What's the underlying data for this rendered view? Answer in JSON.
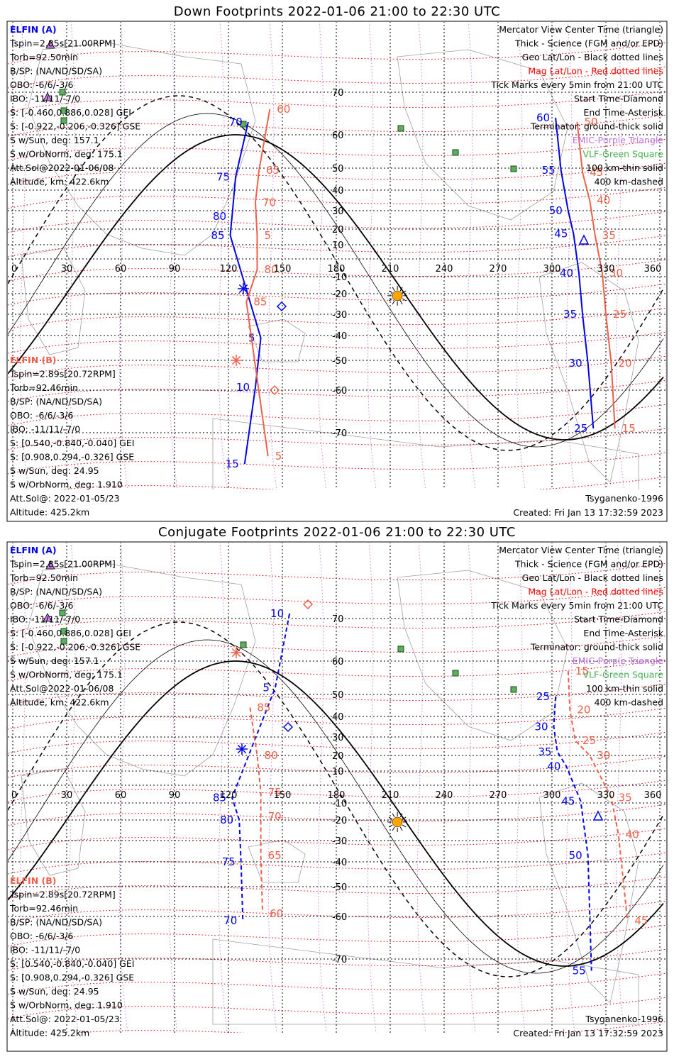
{
  "panels": [
    {
      "title": "Down Footprints 2022-01-06 21:00 to 22:30 UTC",
      "legend_left_a": {
        "name": "ELFIN (A)",
        "lines": [
          "Tspin=2.85s[21.00RPM]",
          "Torb=92.50min",
          "B/SP: (NA/ND/SD/SA)",
          "OBO: -6/6/-3/6",
          "IBO: -11/11/-7/0",
          "S: [-0.460,0.886,0.028] GEI",
          "S: [-0.922,-0.206,-0.326] GSE",
          "S w/Sun, deg: 157.1",
          "S w/OrbNorm, deg: 175.1",
          "Att.Sol@2022-01-06/08",
          "Altitude, km: 422.6km"
        ]
      },
      "legend_left_b": {
        "name": "ELFIN (B)",
        "lines": [
          "Tspin=2.89s[20.72RPM]",
          "Torb=92.46min",
          "B/SP: (NA/ND/SD/SA)",
          "OBO: -6/6/-3/6",
          "IBO: -11/11/-7/0",
          "S: [0.540,-0.840,-0.040] GEI",
          "S: [0.908,0.294,-0.326] GSE",
          "S w/Sun, deg: 24.95",
          "S w/OrbNorm, deg: 1.910",
          "Att.Sol@: 2022-01-05/23",
          "Altitude: 425.2km"
        ]
      },
      "legend_right": [
        {
          "text": "Mercator View Center Time (triangle)",
          "color": "#000000"
        },
        {
          "text": "Thick - Science (FGM and/or EPD)",
          "color": "#000000"
        },
        {
          "text": "Geo Lat/Lon - Black dotted lines",
          "color": "#000000"
        },
        {
          "text": "Mag Lat/Lon - Red dotted lines",
          "color": "#ff0000"
        },
        {
          "text": "Tick Marks every 5min from 21:00 UTC",
          "color": "#000000"
        },
        {
          "text": "Start Time-Diamond",
          "color": "#000000"
        },
        {
          "text": "End Time-Asterisk",
          "color": "#000000"
        },
        {
          "text": "Terminator: ground-thick solid",
          "color": "#000000"
        },
        {
          "text": "EMIC-Purple Triangle",
          "color": "#c070e0"
        },
        {
          "text": "VLF-Green Square",
          "color": "#40b050"
        },
        {
          "text": "100 km-thin solid",
          "color": "#000000"
        },
        {
          "text": "400 km-dashed",
          "color": "#000000"
        }
      ],
      "model": "Tsyganenko-1996",
      "created": "Created: Fri Jan 13 17:32:59 2023"
    },
    {
      "title": "Conjugate Footprints 2022-01-06 21:00 to 22:30 UTC",
      "legend_left_a": {
        "name": "ELFIN (A)",
        "lines": [
          "Tspin=2.85s[21.00RPM]",
          "Torb=92.50min",
          "B/SP: (NA/ND/SD/SA)",
          "OBO: -6/6/-3/6",
          "IBO: -11/11/-7/0",
          "S: [-0.460,0.886,0.028] GEI",
          "S: [-0.922,-0.206,-0.326] GSE",
          "S w/Sun, deg: 157.1",
          "S w/OrbNorm, deg: 175.1",
          "Att.Sol@2022-01-06/08",
          "Altitude, km: 422.6km"
        ]
      },
      "legend_left_b": {
        "name": "ELFIN (B)",
        "lines": [
          "Tspin=2.89s[20.72RPM]",
          "Torb=92.46min",
          "B/SP: (NA/ND/SD/SA)",
          "OBO: -6/6/-3/6",
          "IBO: -11/11/-7/0",
          "S: [0.540,-0.840,-0.040] GEI",
          "S: [0.908,0.294,-0.326] GSE",
          "S w/Sun, deg: 24.95",
          "S w/OrbNorm, deg: 1.910",
          "Att.Sol@: 2022-01-05/23",
          "Altitude: 425.2km"
        ]
      },
      "legend_right": [
        {
          "text": "Mercator View Center Time (triangle)",
          "color": "#000000"
        },
        {
          "text": "Thick - Science (FGM and/or EPD)",
          "color": "#000000"
        },
        {
          "text": "Geo Lat/Lon - Black dotted lines",
          "color": "#000000"
        },
        {
          "text": "Mag Lat/Lon - Red dotted lines",
          "color": "#ff0000"
        },
        {
          "text": "Tick Marks every 5min from 21:00 UTC",
          "color": "#000000"
        },
        {
          "text": "Start Time-Diamond",
          "color": "#000000"
        },
        {
          "text": "End Time-Asterisk",
          "color": "#000000"
        },
        {
          "text": "Terminator: ground-thick solid",
          "color": "#000000"
        },
        {
          "text": "EMIC-Purple Triangle",
          "color": "#c070e0"
        },
        {
          "text": "VLF-Green Square",
          "color": "#40b050"
        },
        {
          "text": "100 km-thin solid",
          "color": "#000000"
        },
        {
          "text": "400 km-dashed",
          "color": "#000000"
        }
      ],
      "model": "Tsyganenko-1996",
      "created": "Created: Fri Jan 13 17:32:59 2023"
    }
  ],
  "map": {
    "lon_ticks": [
      "0",
      "30",
      "60",
      "90",
      "120",
      "150",
      "180",
      "210",
      "240",
      "270",
      "300",
      "330",
      "360"
    ],
    "lat_ticks": [
      "70",
      "60",
      "50",
      "40",
      "30",
      "20",
      "10",
      "-10",
      "-20",
      "-30",
      "-40",
      "-50",
      "-60",
      "-70"
    ],
    "colors": {
      "elfin_a": "#0000ee",
      "elfin_b": "#f06048",
      "terminator": "#000000",
      "mag_grid": "#dd0000",
      "geo_grid": "#000000",
      "vlf": "#40a050",
      "emic": "#c070e0",
      "sun": "#ffa500"
    }
  },
  "tracks": {
    "down": {
      "a_west": [
        {
          "label": "70",
          "lon": 131,
          "lat": 63
        },
        {
          "label": "75",
          "lon": 124,
          "lat": 46
        },
        {
          "label": "80",
          "lon": 122,
          "lat": 27
        },
        {
          "label": "85",
          "lon": 121,
          "lat": 16
        },
        {
          "label": "5",
          "lon": 138,
          "lat": -41
        },
        {
          "label": "10",
          "lon": 135,
          "lat": -59
        },
        {
          "label": "15",
          "lon": 129,
          "lat": -78
        }
      ],
      "b_west": [
        {
          "label": "60",
          "lon": 143,
          "lat": 66
        },
        {
          "label": "65",
          "lon": 137,
          "lat": 49
        },
        {
          "label": "70",
          "lon": 135,
          "lat": 34
        },
        {
          "label": "5",
          "lon": 136,
          "lat": 16
        },
        {
          "label": "80",
          "lon": 136,
          "lat": -6
        },
        {
          "label": "85",
          "lon": 130,
          "lat": -24
        },
        {
          "label": "5",
          "lon": 142,
          "lat": -76
        }
      ],
      "a_east": [
        {
          "label": "60",
          "lon": 302,
          "lat": 64
        },
        {
          "label": "55",
          "lon": 305,
          "lat": 49
        },
        {
          "label": "50",
          "lon": 309,
          "lat": 30
        },
        {
          "label": "45",
          "lon": 312,
          "lat": 17
        },
        {
          "label": "40",
          "lon": 315,
          "lat": -8
        },
        {
          "label": "35",
          "lon": 317,
          "lat": -30
        },
        {
          "label": "30",
          "lon": 320,
          "lat": -51
        },
        {
          "label": "25",
          "lon": 323,
          "lat": -69
        }
      ],
      "b_east": [
        {
          "label": "50",
          "lon": 314,
          "lat": 63
        },
        {
          "label": "45",
          "lon": 317,
          "lat": 48
        },
        {
          "label": "40",
          "lon": 321,
          "lat": 35
        },
        {
          "label": "35",
          "lon": 324,
          "lat": 16
        },
        {
          "label": "30",
          "lon": 328,
          "lat": -8
        },
        {
          "label": "25",
          "lon": 330,
          "lat": -30
        },
        {
          "label": "20",
          "lon": 333,
          "lat": -51
        },
        {
          "label": "15",
          "lon": 335,
          "lat": -69
        }
      ]
    },
    "conj": {
      "a_west": [
        {
          "label": "10",
          "lon": 154,
          "lat": 71
        },
        {
          "label": "5",
          "lon": 146,
          "lat": 52
        },
        {
          "label": "85",
          "lon": 122,
          "lat": -7
        },
        {
          "label": "80",
          "lon": 126,
          "lat": -20
        },
        {
          "label": "75",
          "lon": 127,
          "lat": -40
        },
        {
          "label": "70",
          "lon": 128,
          "lat": -61
        }
      ],
      "b_west": [
        {
          "label": "85",
          "lon": 132,
          "lat": 44
        },
        {
          "label": "80",
          "lon": 136,
          "lat": 20
        },
        {
          "label": "75",
          "lon": 138,
          "lat": -4
        },
        {
          "label": "70",
          "lon": 138,
          "lat": -18
        },
        {
          "label": "65",
          "lon": 138,
          "lat": -37
        },
        {
          "label": "60",
          "lon": 139,
          "lat": -59
        }
      ],
      "a_east": [
        {
          "label": "25",
          "lon": 302,
          "lat": 49
        },
        {
          "label": "30",
          "lon": 301,
          "lat": 35
        },
        {
          "label": "35",
          "lon": 303,
          "lat": 22
        },
        {
          "label": "40",
          "lon": 308,
          "lat": 13
        },
        {
          "label": "45",
          "lon": 316,
          "lat": -9
        },
        {
          "label": "50",
          "lon": 320,
          "lat": -37
        },
        {
          "label": "55",
          "lon": 322,
          "lat": -73
        }
      ],
      "b_east": [
        {
          "label": "15",
          "lon": 309,
          "lat": 57
        },
        {
          "label": "20",
          "lon": 310,
          "lat": 43
        },
        {
          "label": "25",
          "lon": 313,
          "lat": 28
        },
        {
          "label": "30",
          "lon": 321,
          "lat": 20
        },
        {
          "label": "35",
          "lon": 333,
          "lat": -7
        },
        {
          "label": "40",
          "lon": 337,
          "lat": -27
        },
        {
          "label": "45",
          "lon": 342,
          "lat": -61
        }
      ]
    }
  }
}
